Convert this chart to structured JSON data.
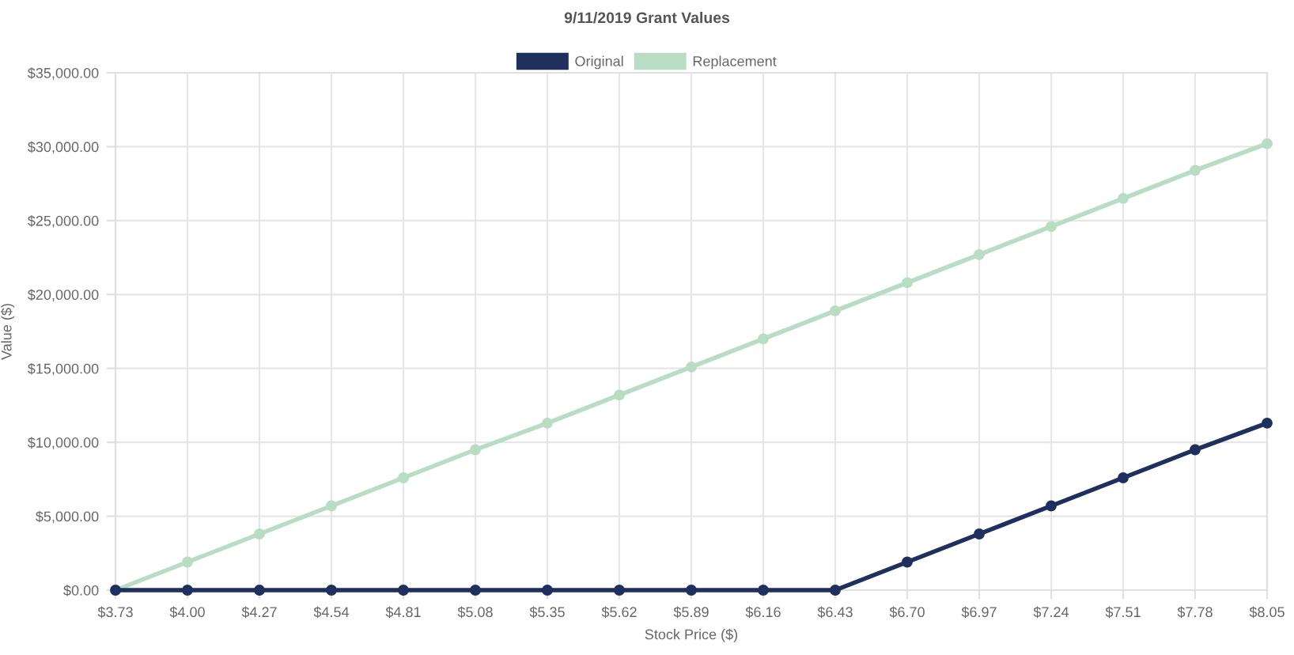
{
  "chart_data": {
    "type": "line",
    "title": "9/11/2019 Grant Values",
    "xlabel": "Stock Price ($)",
    "ylabel": "Value ($)",
    "categories": [
      "$3.73",
      "$4.00",
      "$4.27",
      "$4.54",
      "$4.81",
      "$5.08",
      "$5.35",
      "$5.62",
      "$5.89",
      "$6.16",
      "$6.43",
      "$6.70",
      "$6.97",
      "$7.24",
      "$7.51",
      "$7.78",
      "$8.05"
    ],
    "series": [
      {
        "name": "Original",
        "color": "#1f2f5e",
        "values": [
          0,
          0,
          0,
          0,
          0,
          0,
          0,
          0,
          0,
          0,
          0,
          1900,
          3800,
          5700,
          7600,
          9500,
          11300
        ]
      },
      {
        "name": "Replacement",
        "color": "#b9dcc5",
        "values": [
          0,
          1900,
          3800,
          5700,
          7600,
          9500,
          11300,
          13200,
          15100,
          17000,
          18900,
          20800,
          22700,
          24600,
          26500,
          28400,
          30200
        ]
      }
    ],
    "ylim": [
      0,
      35000
    ],
    "yticks": [
      {
        "value": 0,
        "label": "$0.00"
      },
      {
        "value": 5000,
        "label": "$5,000.00"
      },
      {
        "value": 10000,
        "label": "$10,000.00"
      },
      {
        "value": 15000,
        "label": "$15,000.00"
      },
      {
        "value": 20000,
        "label": "$20,000.00"
      },
      {
        "value": 25000,
        "label": "$25,000.00"
      },
      {
        "value": 30000,
        "label": "$30,000.00"
      },
      {
        "value": 35000,
        "label": "$35,000.00"
      }
    ],
    "grid": true,
    "legend": "top",
    "marker": "circle",
    "line_style": "solid"
  }
}
